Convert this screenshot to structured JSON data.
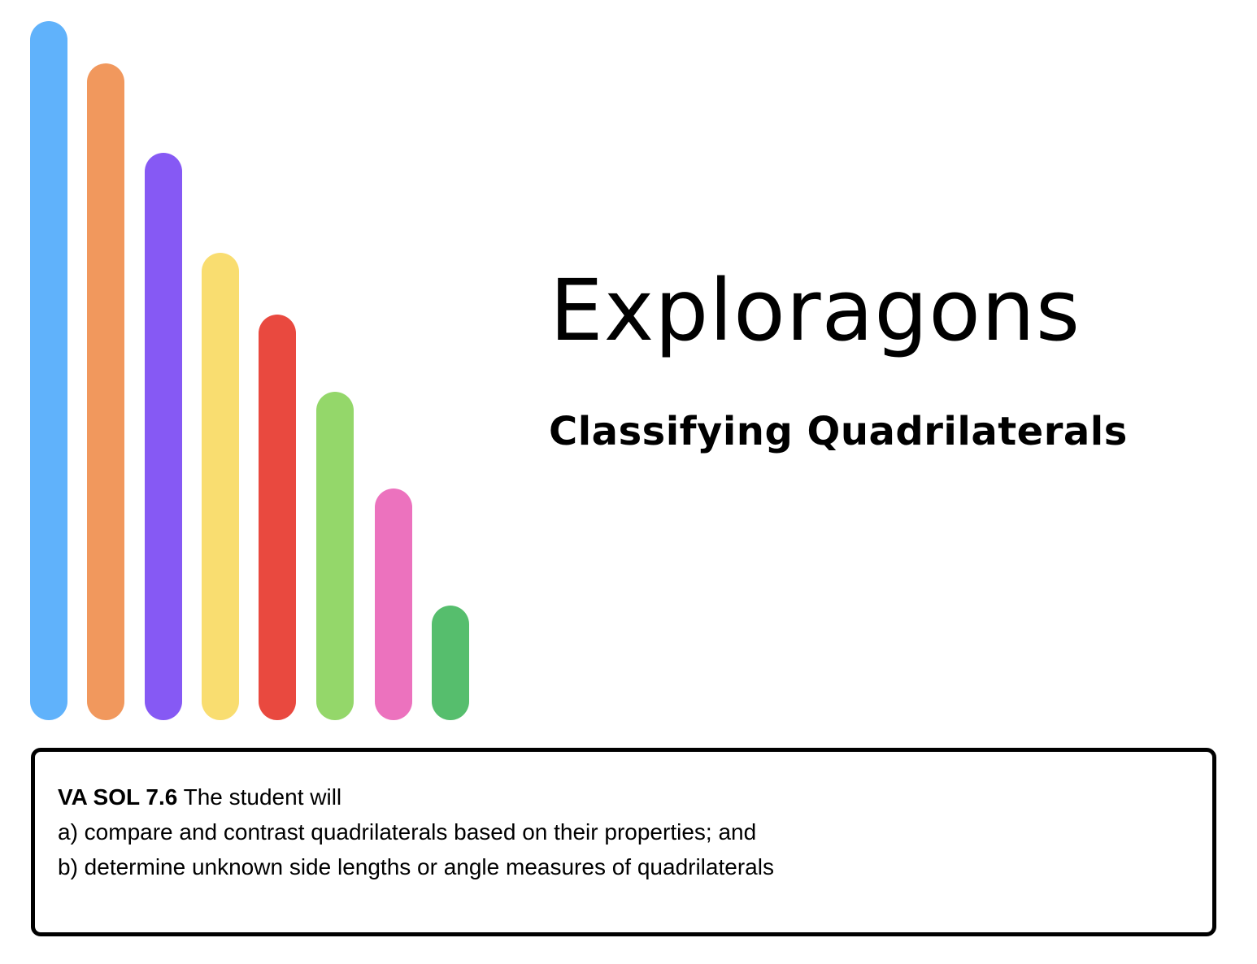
{
  "document": {
    "title": "Exploragons",
    "subtitle": "Classifying Quadrilaterals"
  },
  "decoration": {
    "bar_colors": [
      "#60b2fb",
      "#f1985d",
      "#8659f4",
      "#f9dd70",
      "#e9493f",
      "#94d76a",
      "#ec72be",
      "#56be6d"
    ]
  },
  "standard": {
    "code": "VA SOL 7.6",
    "intro": " The student will",
    "items": [
      "a) compare and contrast quadrilaterals based on their properties; and",
      "b) determine unknown side lengths or angle measures of quadrilaterals"
    ]
  }
}
